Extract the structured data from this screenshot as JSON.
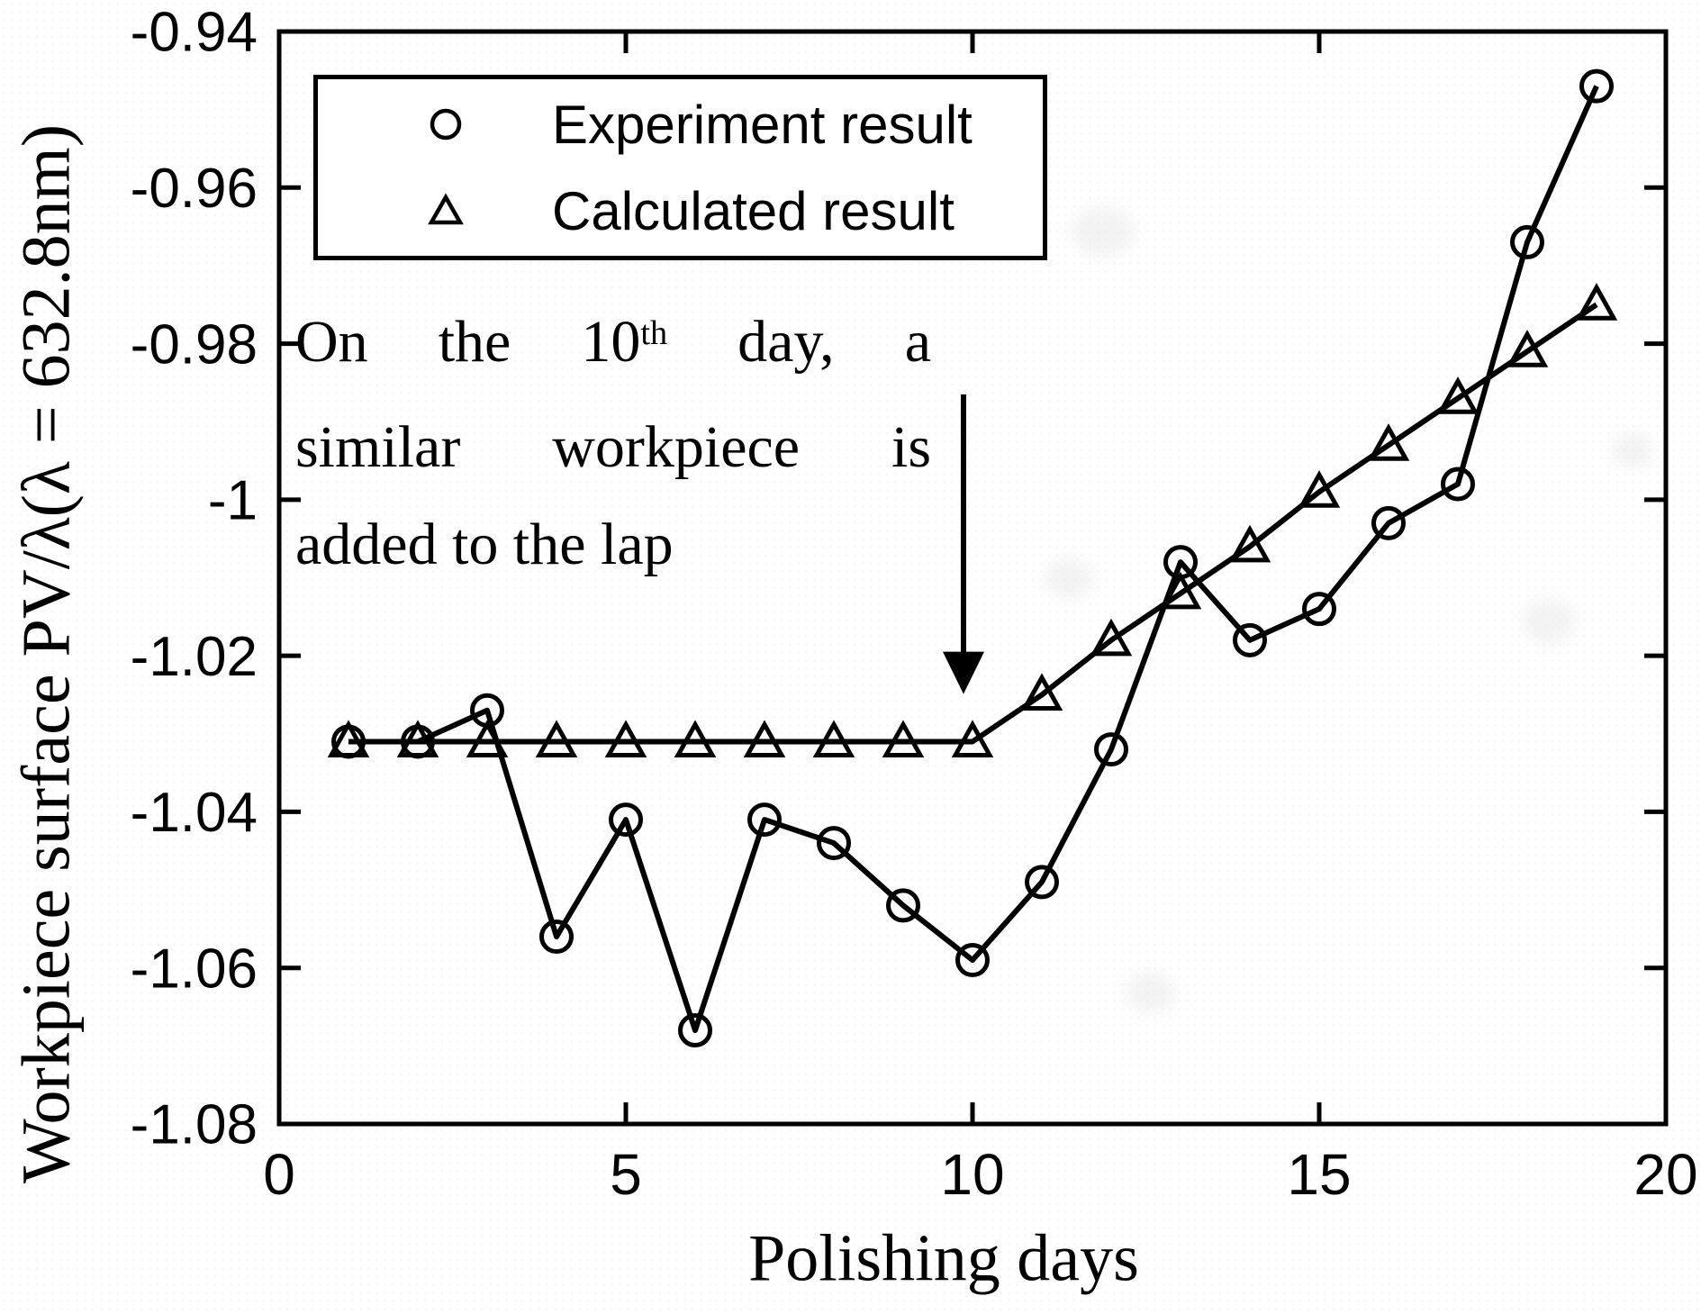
{
  "window": {
    "background": "#ffffff",
    "ink": "#000000"
  },
  "chart_data": {
    "type": "line",
    "title": "",
    "xlabel": "Polishing days",
    "ylabel": "Workpiece surface PV/λ(λ = 632.8nm)",
    "xlim": [
      0,
      20
    ],
    "ylim": [
      -1.08,
      -0.94
    ],
    "grid": false,
    "box": true,
    "legend_position": "top-left-inside",
    "xticks": {
      "values": [
        0,
        5,
        10,
        15,
        20
      ],
      "labels": [
        "0",
        "5",
        "10",
        "15",
        "20"
      ]
    },
    "yticks": {
      "values": [
        -0.94,
        -0.96,
        -0.98,
        -1,
        -1.02,
        -1.04,
        -1.06,
        -1.08
      ],
      "labels": [
        "-0.94",
        "-0.96",
        "-0.98",
        "-1",
        "-1.02",
        "-1.04",
        "-1.06",
        "-1.08"
      ]
    },
    "x": [
      1,
      2,
      3,
      4,
      5,
      6,
      7,
      8,
      9,
      10,
      11,
      12,
      13,
      14,
      15,
      16,
      17,
      18,
      19
    ],
    "series": [
      {
        "name": "Experiment result",
        "marker": "circle",
        "line": "solid",
        "color": "#000000",
        "values": [
          -1.031,
          -1.031,
          -1.027,
          -1.056,
          -1.041,
          -1.068,
          -1.041,
          -1.044,
          -1.052,
          -1.059,
          -1.049,
          -1.032,
          -1.008,
          -1.018,
          -1.014,
          -1.003,
          -0.998,
          -0.967,
          -0.947
        ]
      },
      {
        "name": "Calculated result",
        "marker": "triangle",
        "line": "solid",
        "color": "#000000",
        "values": [
          -1.031,
          -1.031,
          -1.031,
          -1.031,
          -1.031,
          -1.031,
          -1.031,
          -1.031,
          -1.031,
          -1.031,
          -1.025,
          -1.018,
          -1.012,
          -1.006,
          -0.999,
          -0.993,
          -0.987,
          -0.981,
          -0.975
        ]
      }
    ],
    "annotation_arrow": {
      "x": 9.87,
      "value_from": -0.9865,
      "value_to": -1.0249
    }
  },
  "annotation": {
    "line1_pre": "On the 10",
    "line1_sup": "th",
    "line1_post": " day, a",
    "line2": "similar workpiece is",
    "line3": "added to the lap"
  }
}
